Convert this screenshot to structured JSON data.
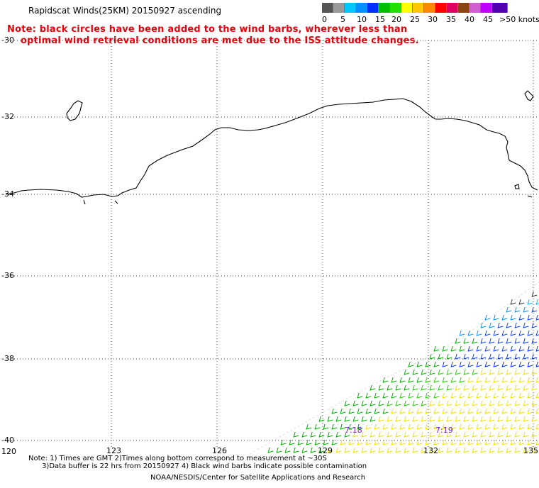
{
  "header": {
    "title": "Rapidscat Winds(25KM) 20150927 ascending",
    "note_line1": "Note: black circles have been added to the wind barbs, wherever less than",
    "note_line2": "    optimal wind retrieval conditions are met due to the ISS attitude changes."
  },
  "legend": {
    "colors": [
      "#555555",
      "#9a9a9a",
      "#00c8ff",
      "#0090ff",
      "#0030ff",
      "#00c000",
      "#22e000",
      "#ffff00",
      "#ffc800",
      "#ff8800",
      "#ff0000",
      "#e00060",
      "#8b4513",
      "#d060d0",
      "#c000ff",
      "#5000b0"
    ],
    "labels": [
      "0",
      "5",
      "10",
      "15",
      "20",
      "25",
      "30",
      "35",
      "40",
      "45",
      ">50 knots"
    ]
  },
  "axes": {
    "lat_labels": [
      "-30",
      "-32",
      "-34",
      "-36",
      "-38",
      "-40"
    ],
    "lon_labels": [
      "120",
      "123",
      "126",
      "129",
      "132",
      "135"
    ]
  },
  "times": [
    "7:18",
    "7:19"
  ],
  "footer": {
    "line1": "Note: 1) Times are GMT 2)Times along bottom correspond to measurement at ~30S",
    "line2": "      3)Data buffer is 22 hrs from 20150927 4) Black wind barbs indicate possible contamination",
    "credit": "NOAA/NESDIS/Center for Satellite Applications and Research"
  }
}
